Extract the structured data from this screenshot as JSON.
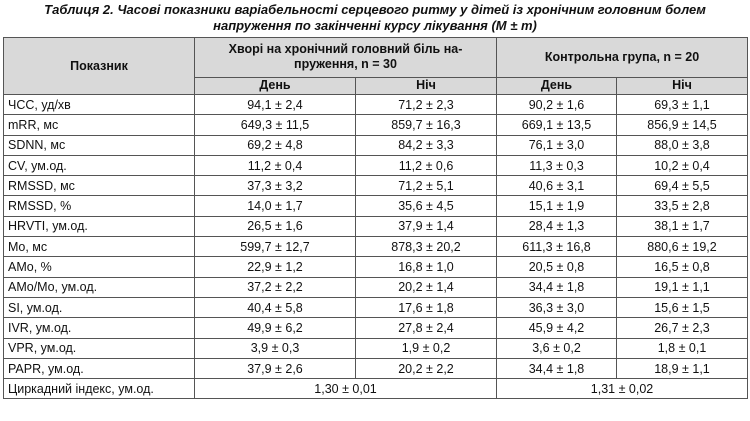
{
  "title_lines": [
    "Таблиця 2. Часові показники варіабельності серцевого ритму у дітей із хронічним головним болем",
    "напруження по закінченні курсу лікування (M ± m)"
  ],
  "table": {
    "header": {
      "indicator": "Показник",
      "groups": [
        {
          "lines": [
            "Хворі на хронічний головний біль на-",
            "пруження, n = 30"
          ],
          "sub": [
            "День",
            "Ніч"
          ]
        },
        {
          "lines": [
            "Контрольна група, n = 20"
          ],
          "sub": [
            "День",
            "Ніч"
          ]
        }
      ]
    },
    "rows": [
      [
        "ЧСС, уд/хв",
        "94,1 ± 2,4",
        "71,2 ± 2,3",
        "90,2 ± 1,6",
        "69,3 ± 1,1"
      ],
      [
        "mRR, мс",
        "649,3 ± 11,5",
        "859,7 ± 16,3",
        "669,1 ± 13,5",
        "856,9 ± 14,5"
      ],
      [
        "SDNN, мс",
        "69,2 ± 4,8",
        "84,2 ± 3,3",
        "76,1 ± 3,0",
        "88,0 ± 3,8"
      ],
      [
        "CV, ум.од.",
        "11,2 ± 0,4",
        "11,2 ± 0,6",
        "11,3 ± 0,3",
        "10,2 ± 0,4"
      ],
      [
        "RMSSD, мс",
        "37,3 ± 3,2",
        "71,2 ± 5,1",
        "40,6 ± 3,1",
        "69,4 ± 5,5"
      ],
      [
        "RMSSD, %",
        "14,0 ± 1,7",
        "35,6 ± 4,5",
        "15,1 ± 1,9",
        "33,5 ± 2,8"
      ],
      [
        "HRVTI, ум.од.",
        "26,5 ± 1,6",
        "37,9 ± 1,4",
        "28,4 ± 1,3",
        "38,1 ± 1,7"
      ],
      [
        "Mo, мс",
        "599,7 ± 12,7",
        "878,3 ± 20,2",
        "611,3 ± 16,8",
        "880,6 ± 19,2"
      ],
      [
        "AMo, %",
        "22,9 ± 1,2",
        "16,8 ± 1,0",
        "20,5 ± 0,8",
        "16,5 ± 0,8"
      ],
      [
        "AMo/Mo, ум.од.",
        "37,2 ± 2,2",
        "20,2 ± 1,4",
        "34,4 ± 1,8",
        "19,1 ± 1,1"
      ],
      [
        "SI, ум.од.",
        "40,4 ± 5,8",
        "17,6 ± 1,8",
        "36,3 ± 3,0",
        "15,6 ± 1,5"
      ],
      [
        "IVR, ум.од.",
        "49,9 ± 6,2",
        "27,8 ± 2,4",
        "45,9 ± 4,2",
        "26,7 ± 2,3"
      ],
      [
        "VPR, ум.од.",
        "3,9 ± 0,3",
        "1,9 ± 0,2",
        "3,6 ± 0,2",
        "1,8 ± 0,1"
      ],
      [
        "PAPR, ум.од.",
        "37,9 ± 2,6",
        "20,2 ± 2,2",
        "34,4 ± 1,8",
        "18,9 ± 1,1"
      ]
    ],
    "footer_row": [
      "Циркадний індекс, ум.од.",
      "1,30 ± 0,01",
      "1,31 ± 0,02"
    ]
  }
}
